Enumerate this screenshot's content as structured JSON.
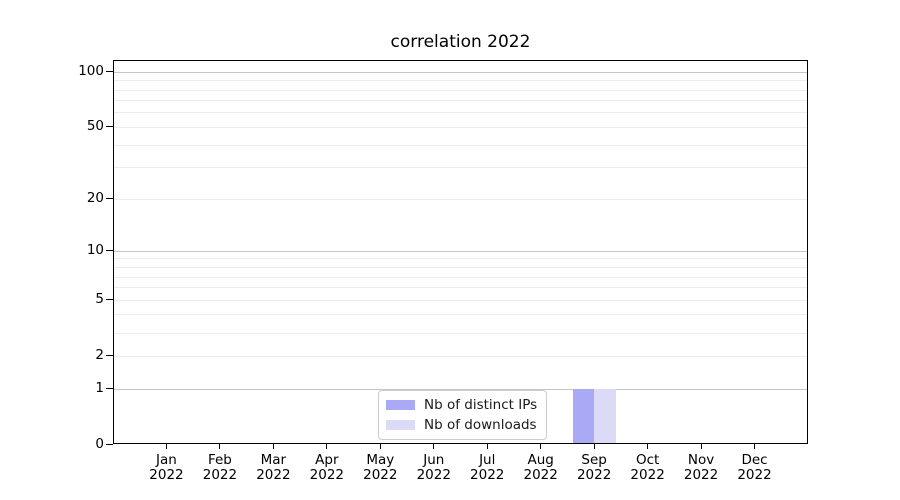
{
  "chart_data": {
    "type": "bar",
    "title": "correlation 2022",
    "categories": [
      {
        "month": "Jan",
        "year": "2022"
      },
      {
        "month": "Feb",
        "year": "2022"
      },
      {
        "month": "Mar",
        "year": "2022"
      },
      {
        "month": "Apr",
        "year": "2022"
      },
      {
        "month": "May",
        "year": "2022"
      },
      {
        "month": "Jun",
        "year": "2022"
      },
      {
        "month": "Jul",
        "year": "2022"
      },
      {
        "month": "Aug",
        "year": "2022"
      },
      {
        "month": "Sep",
        "year": "2022"
      },
      {
        "month": "Oct",
        "year": "2022"
      },
      {
        "month": "Nov",
        "year": "2022"
      },
      {
        "month": "Dec",
        "year": "2022"
      }
    ],
    "series": [
      {
        "name": "Nb of distinct IPs",
        "color": "#a9a9f6",
        "values": [
          0,
          0,
          0,
          0,
          0,
          0,
          0,
          0,
          1,
          0,
          0,
          0
        ]
      },
      {
        "name": "Nb of downloads",
        "color": "#dbdbf8",
        "values": [
          0,
          0,
          0,
          0,
          0,
          0,
          0,
          0,
          1,
          0,
          0,
          0
        ]
      }
    ],
    "y_axis": {
      "scale": "log1p",
      "ticks": [
        0,
        1,
        2,
        5,
        10,
        20,
        50,
        100
      ],
      "major_gridlines": [
        1,
        10,
        100
      ],
      "minor_gridlines": [
        2,
        3,
        4,
        5,
        6,
        7,
        8,
        9,
        20,
        30,
        40,
        50,
        60,
        70,
        80,
        90
      ],
      "ylim": [
        0,
        115
      ]
    },
    "legend": {
      "position": "lower center"
    },
    "colors": {
      "grid_major": "#c6c6c6",
      "grid_minor": "#ececec",
      "axis": "#000000",
      "background": "#ffffff"
    }
  }
}
